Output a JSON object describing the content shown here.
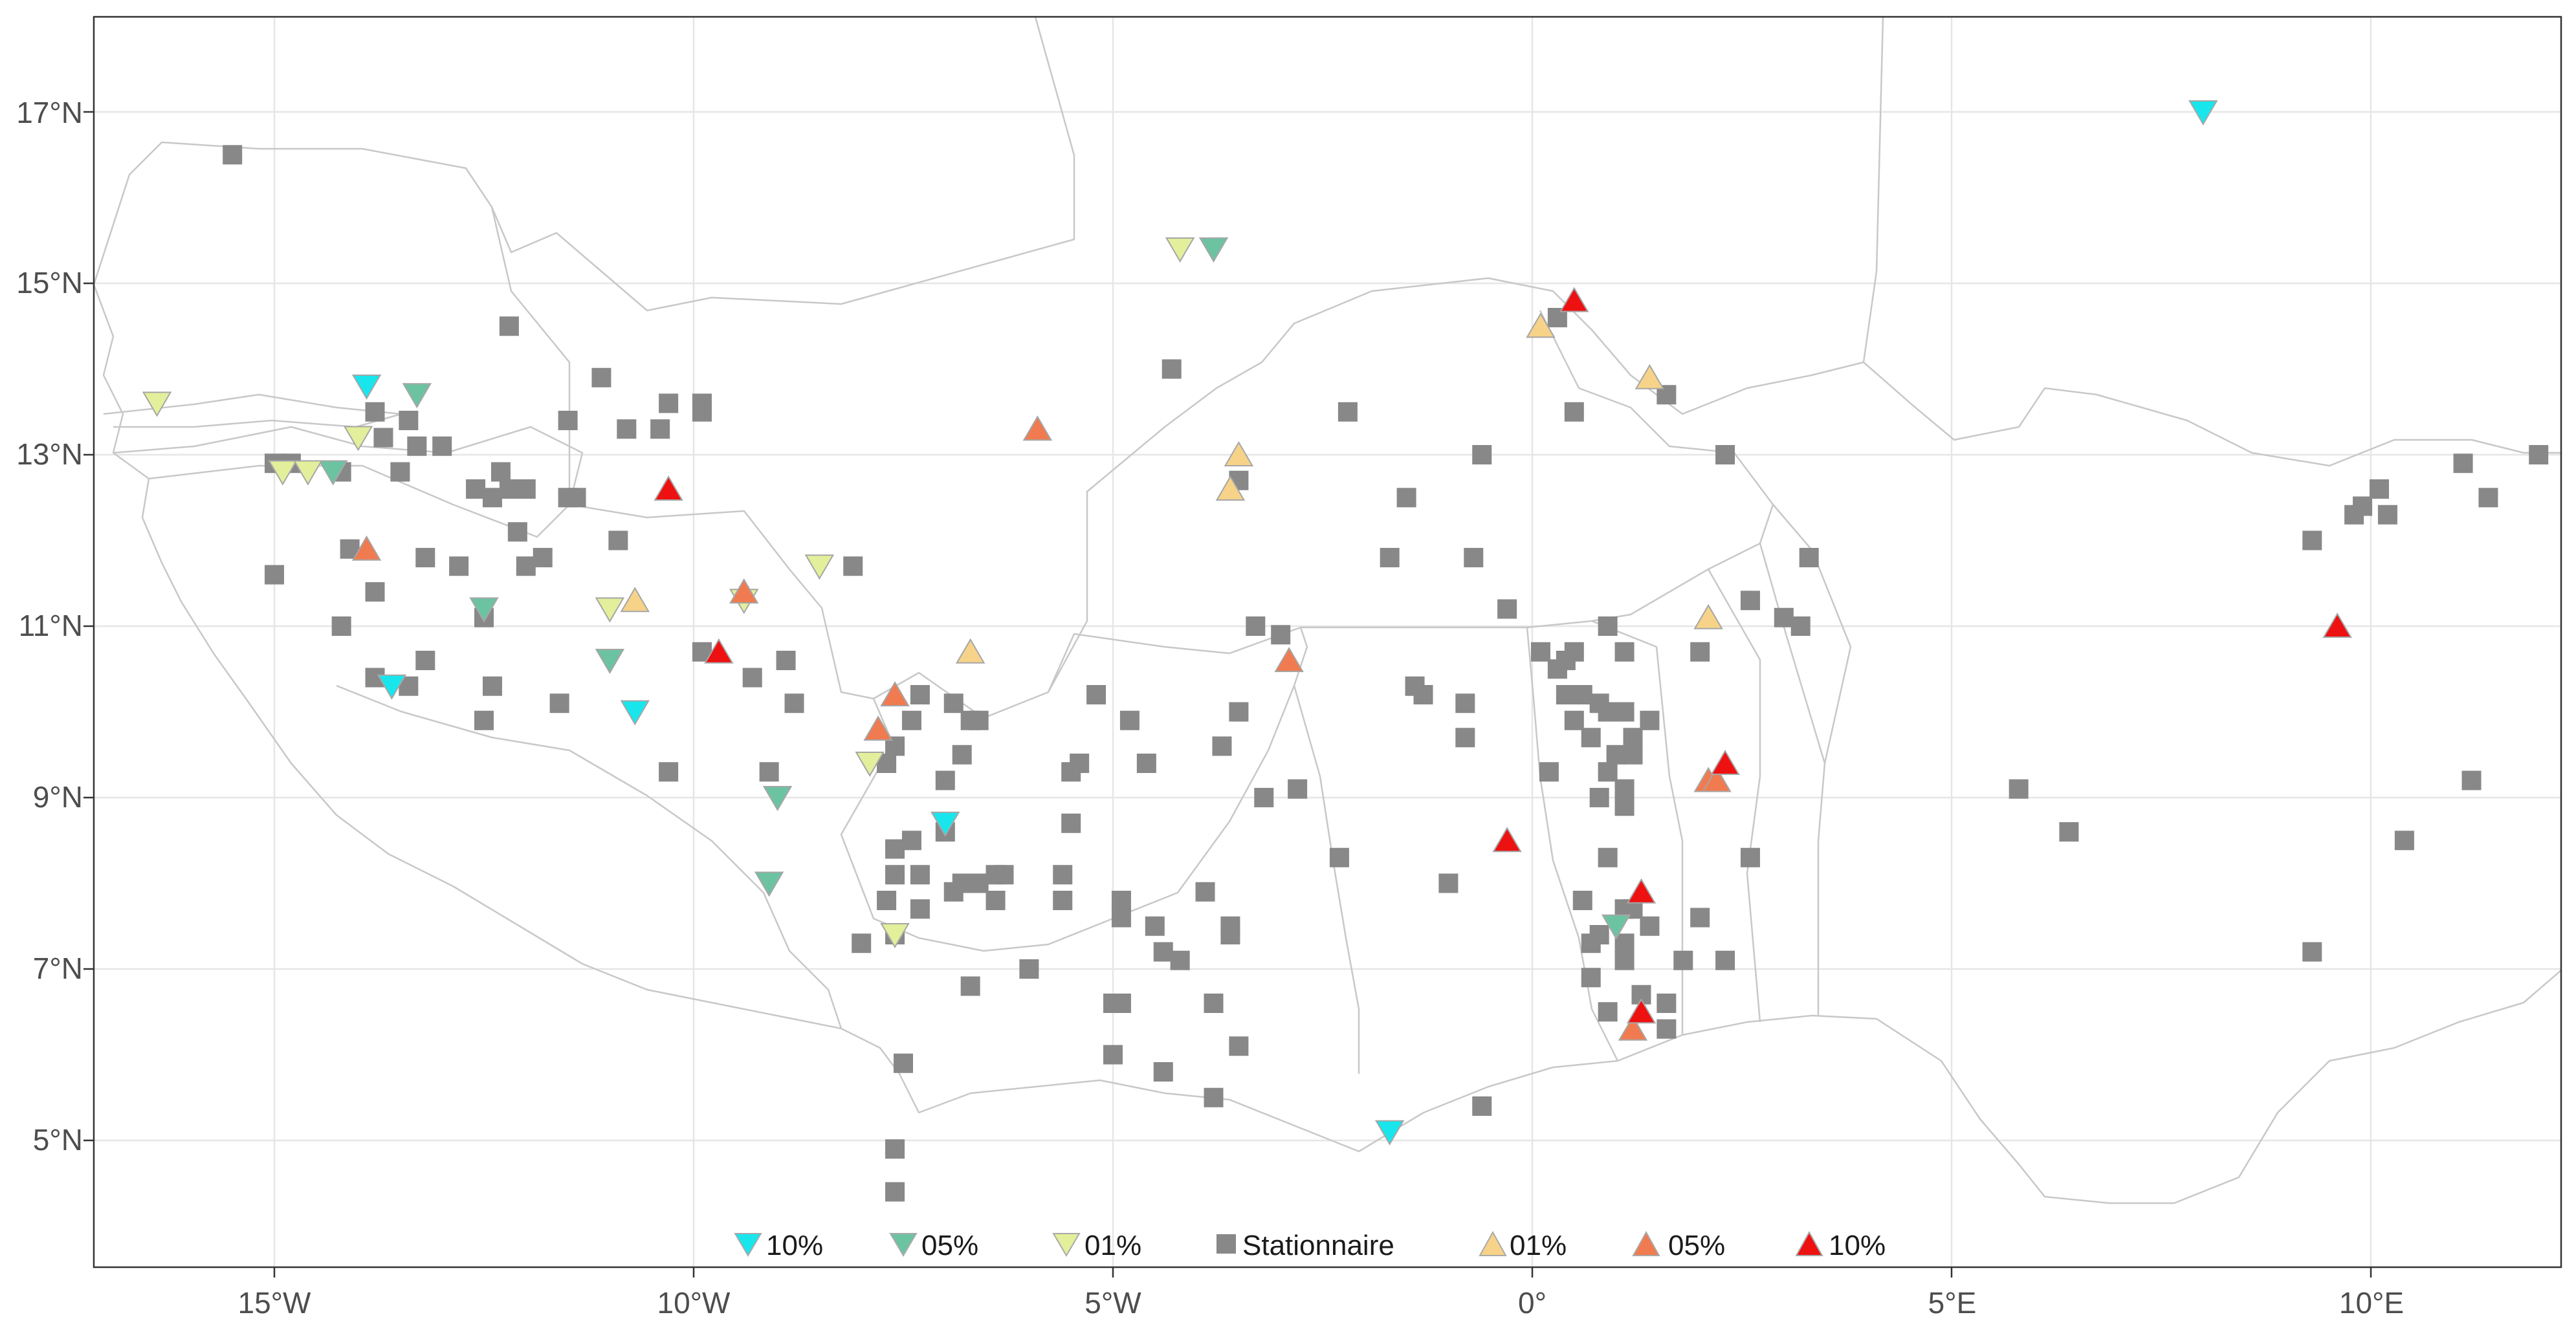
{
  "map": {
    "lon_range": [
      -17.0,
      12.4
    ],
    "lat_range": [
      3.0,
      18.3
    ],
    "graticule": {
      "lon": [
        -15,
        -10,
        -5,
        0,
        5,
        10
      ],
      "lat": [
        5,
        7,
        9,
        11,
        13,
        15,
        17
      ]
    },
    "x_tick_labels": [
      "15°W",
      "10°W",
      "5°W",
      "0°",
      "5°E",
      "10°E"
    ],
    "y_tick_labels": [
      "5°N",
      "7°N",
      "9°N",
      "11°N",
      "13°N",
      "15°N",
      "17°N"
    ]
  },
  "legend": [
    {
      "label": "10%",
      "symbol": "down",
      "color": "#19e6ec"
    },
    {
      "label": "05%",
      "symbol": "down",
      "color": "#6cc3a2"
    },
    {
      "label": "01%",
      "symbol": "down",
      "color": "#e3ef9b"
    },
    {
      "label": "Stationnaire",
      "symbol": "square",
      "color": "#888888"
    },
    {
      "label": "01%",
      "symbol": "up",
      "color": "#f6d389"
    },
    {
      "label": "05%",
      "symbol": "up",
      "color": "#f07b50"
    },
    {
      "label": "10%",
      "symbol": "up",
      "color": "#ee1111"
    }
  ],
  "stations": {
    "down_10": [
      [
        -13.9,
        13.8
      ],
      [
        -13.6,
        10.3
      ],
      [
        -10.7,
        10.0
      ],
      [
        -7.0,
        8.7
      ],
      [
        -1.7,
        5.1
      ],
      [
        8.0,
        17.0
      ]
    ],
    "down_05": [
      [
        -13.3,
        13.7
      ],
      [
        -14.3,
        12.8
      ],
      [
        -12.5,
        11.2
      ],
      [
        -11.0,
        10.6
      ],
      [
        -9.0,
        9.0
      ],
      [
        -9.1,
        8.0
      ],
      [
        -3.8,
        15.4
      ],
      [
        1.0,
        7.5
      ]
    ],
    "down_01": [
      [
        -16.4,
        13.6
      ],
      [
        -14.9,
        12.8
      ],
      [
        -14.6,
        12.8
      ],
      [
        -14.0,
        13.2
      ],
      [
        -11.0,
        11.2
      ],
      [
        -9.4,
        11.3
      ],
      [
        -8.5,
        11.7
      ],
      [
        -7.9,
        9.4
      ],
      [
        -7.6,
        7.4
      ],
      [
        -4.2,
        15.4
      ]
    ],
    "up_01": [
      [
        -10.7,
        11.3
      ],
      [
        -6.7,
        10.7
      ],
      [
        -3.5,
        13.0
      ],
      [
        -3.6,
        12.6
      ],
      [
        0.1,
        14.5
      ],
      [
        1.4,
        13.9
      ],
      [
        2.1,
        11.1
      ]
    ],
    "up_05": [
      [
        -13.9,
        11.9
      ],
      [
        -9.4,
        11.4
      ],
      [
        -7.8,
        9.8
      ],
      [
        -7.6,
        10.2
      ],
      [
        -5.9,
        13.3
      ],
      [
        -2.9,
        10.6
      ],
      [
        1.2,
        6.3
      ],
      [
        2.1,
        9.2
      ],
      [
        2.2,
        9.2
      ]
    ],
    "up_10": [
      [
        -10.3,
        12.6
      ],
      [
        -9.7,
        10.7
      ],
      [
        -0.3,
        8.5
      ],
      [
        0.5,
        14.8
      ],
      [
        1.3,
        7.9
      ],
      [
        1.3,
        6.5
      ],
      [
        2.3,
        9.4
      ],
      [
        9.6,
        11.0
      ]
    ],
    "stationnaire": [
      [
        -15.5,
        16.5
      ],
      [
        -12.2,
        14.5
      ],
      [
        -11.1,
        13.9
      ],
      [
        -10.8,
        13.3
      ],
      [
        -10.4,
        13.3
      ],
      [
        -10.3,
        13.6
      ],
      [
        -9.9,
        13.6
      ],
      [
        -9.9,
        13.5
      ],
      [
        -11.5,
        13.4
      ],
      [
        -13.0,
        13.1
      ],
      [
        -13.3,
        13.1
      ],
      [
        -13.4,
        13.4
      ],
      [
        -13.7,
        13.2
      ],
      [
        -13.8,
        13.5
      ],
      [
        -14.2,
        12.8
      ],
      [
        -14.8,
        12.9
      ],
      [
        -15.0,
        12.9
      ],
      [
        -13.5,
        12.8
      ],
      [
        -12.6,
        12.6
      ],
      [
        -12.3,
        12.8
      ],
      [
        -12.2,
        12.6
      ],
      [
        -12.4,
        12.5
      ],
      [
        -12.0,
        12.6
      ],
      [
        -11.5,
        12.5
      ],
      [
        -11.4,
        12.5
      ],
      [
        -10.9,
        12.0
      ],
      [
        -11.8,
        11.8
      ],
      [
        -12.0,
        11.7
      ],
      [
        -12.1,
        12.1
      ],
      [
        -12.5,
        11.1
      ],
      [
        -13.2,
        11.8
      ],
      [
        -14.1,
        11.9
      ],
      [
        -14.2,
        11.0
      ],
      [
        -15.0,
        11.6
      ],
      [
        -13.8,
        11.4
      ],
      [
        -12.8,
        11.7
      ],
      [
        -13.2,
        10.6
      ],
      [
        -12.4,
        10.3
      ],
      [
        -13.8,
        10.4
      ],
      [
        -13.4,
        10.3
      ],
      [
        -12.5,
        9.9
      ],
      [
        -11.6,
        10.1
      ],
      [
        -9.9,
        10.7
      ],
      [
        -9.3,
        10.4
      ],
      [
        -8.9,
        10.6
      ],
      [
        -8.8,
        10.1
      ],
      [
        -9.1,
        9.3
      ],
      [
        -10.3,
        9.3
      ],
      [
        -8.1,
        11.7
      ],
      [
        -7.4,
        9.9
      ],
      [
        -7.6,
        9.6
      ],
      [
        -7.7,
        9.4
      ],
      [
        -7.3,
        10.2
      ],
      [
        -6.9,
        10.1
      ],
      [
        -6.7,
        9.9
      ],
      [
        -6.6,
        9.9
      ],
      [
        -6.8,
        9.5
      ],
      [
        -7.0,
        9.2
      ],
      [
        -7.0,
        8.6
      ],
      [
        -7.4,
        8.5
      ],
      [
        -7.6,
        8.4
      ],
      [
        -7.3,
        8.1
      ],
      [
        -7.6,
        8.1
      ],
      [
        -7.7,
        7.8
      ],
      [
        -7.3,
        7.7
      ],
      [
        -8.0,
        7.3
      ],
      [
        -7.6,
        7.4
      ],
      [
        -6.9,
        7.9
      ],
      [
        -6.8,
        8.0
      ],
      [
        -6.4,
        8.1
      ],
      [
        -6.6,
        8.0
      ],
      [
        -6.4,
        7.8
      ],
      [
        -6.3,
        8.1
      ],
      [
        -5.6,
        8.1
      ],
      [
        -5.6,
        7.8
      ],
      [
        -5.4,
        9.4
      ],
      [
        -5.5,
        9.3
      ],
      [
        -5.5,
        8.7
      ],
      [
        -6.7,
        6.8
      ],
      [
        -6.0,
        7.0
      ],
      [
        -5.2,
        10.2
      ],
      [
        -4.8,
        9.9
      ],
      [
        -4.6,
        9.4
      ],
      [
        -4.9,
        7.8
      ],
      [
        -4.9,
        7.6
      ],
      [
        -4.5,
        7.5
      ],
      [
        -4.4,
        7.2
      ],
      [
        -4.2,
        7.1
      ],
      [
        -3.6,
        7.5
      ],
      [
        -3.6,
        7.4
      ],
      [
        -3.5,
        6.1
      ],
      [
        -3.8,
        5.5
      ],
      [
        -4.4,
        5.8
      ],
      [
        -5.0,
        6.0
      ],
      [
        -4.9,
        6.6
      ],
      [
        -5.0,
        6.6
      ],
      [
        -3.8,
        6.6
      ],
      [
        -3.9,
        7.9
      ],
      [
        -3.7,
        9.6
      ],
      [
        -3.5,
        10.0
      ],
      [
        -3.3,
        11.0
      ],
      [
        -3.0,
        10.9
      ],
      [
        -3.2,
        9.0
      ],
      [
        -2.8,
        9.1
      ],
      [
        -2.3,
        8.3
      ],
      [
        -4.3,
        14.0
      ],
      [
        -3.5,
        12.7
      ],
      [
        -2.2,
        13.5
      ],
      [
        -1.5,
        12.5
      ],
      [
        -1.7,
        11.8
      ],
      [
        -1.4,
        10.3
      ],
      [
        -1.3,
        10.2
      ],
      [
        -1.0,
        8.0
      ],
      [
        -0.8,
        10.1
      ],
      [
        -0.8,
        9.7
      ],
      [
        -0.7,
        11.8
      ],
      [
        -0.6,
        13.0
      ],
      [
        -0.3,
        11.2
      ],
      [
        -0.6,
        5.4
      ],
      [
        -7.5,
        5.9
      ],
      [
        -7.6,
        4.9
      ],
      [
        -7.6,
        4.4
      ],
      [
        0.3,
        14.6
      ],
      [
        0.5,
        13.5
      ],
      [
        1.6,
        13.7
      ],
      [
        2.3,
        13.0
      ],
      [
        0.1,
        10.7
      ],
      [
        0.3,
        10.5
      ],
      [
        0.4,
        10.6
      ],
      [
        0.5,
        10.7
      ],
      [
        0.9,
        11.0
      ],
      [
        1.1,
        10.7
      ],
      [
        0.4,
        10.2
      ],
      [
        0.6,
        10.2
      ],
      [
        0.8,
        10.1
      ],
      [
        0.9,
        10.0
      ],
      [
        1.1,
        10.0
      ],
      [
        0.5,
        9.9
      ],
      [
        0.7,
        9.7
      ],
      [
        1.2,
        9.7
      ],
      [
        1.4,
        9.9
      ],
      [
        1.0,
        9.5
      ],
      [
        0.9,
        9.3
      ],
      [
        0.8,
        9.0
      ],
      [
        0.2,
        9.3
      ],
      [
        1.1,
        9.1
      ],
      [
        1.2,
        9.5
      ],
      [
        1.1,
        8.9
      ],
      [
        0.9,
        8.3
      ],
      [
        0.6,
        7.8
      ],
      [
        1.1,
        7.7
      ],
      [
        1.2,
        7.7
      ],
      [
        0.8,
        7.4
      ],
      [
        1.1,
        7.3
      ],
      [
        1.4,
        7.5
      ],
      [
        0.7,
        7.3
      ],
      [
        1.1,
        7.1
      ],
      [
        0.7,
        6.9
      ],
      [
        0.9,
        6.5
      ],
      [
        1.3,
        6.7
      ],
      [
        1.6,
        6.3
      ],
      [
        1.6,
        6.6
      ],
      [
        1.8,
        7.1
      ],
      [
        2.0,
        7.6
      ],
      [
        2.3,
        7.1
      ],
      [
        2.6,
        8.3
      ],
      [
        2.0,
        10.7
      ],
      [
        2.6,
        11.3
      ],
      [
        3.0,
        11.1
      ],
      [
        3.2,
        11.0
      ],
      [
        3.3,
        11.8
      ],
      [
        5.8,
        9.1
      ],
      [
        6.4,
        8.6
      ],
      [
        9.3,
        7.2
      ],
      [
        9.3,
        12.0
      ],
      [
        9.8,
        12.3
      ],
      [
        9.9,
        12.4
      ],
      [
        10.1,
        12.6
      ],
      [
        10.2,
        12.3
      ],
      [
        11.1,
        12.9
      ],
      [
        11.4,
        12.5
      ],
      [
        12.0,
        13.0
      ],
      [
        11.2,
        9.2
      ],
      [
        10.4,
        8.5
      ]
    ]
  }
}
